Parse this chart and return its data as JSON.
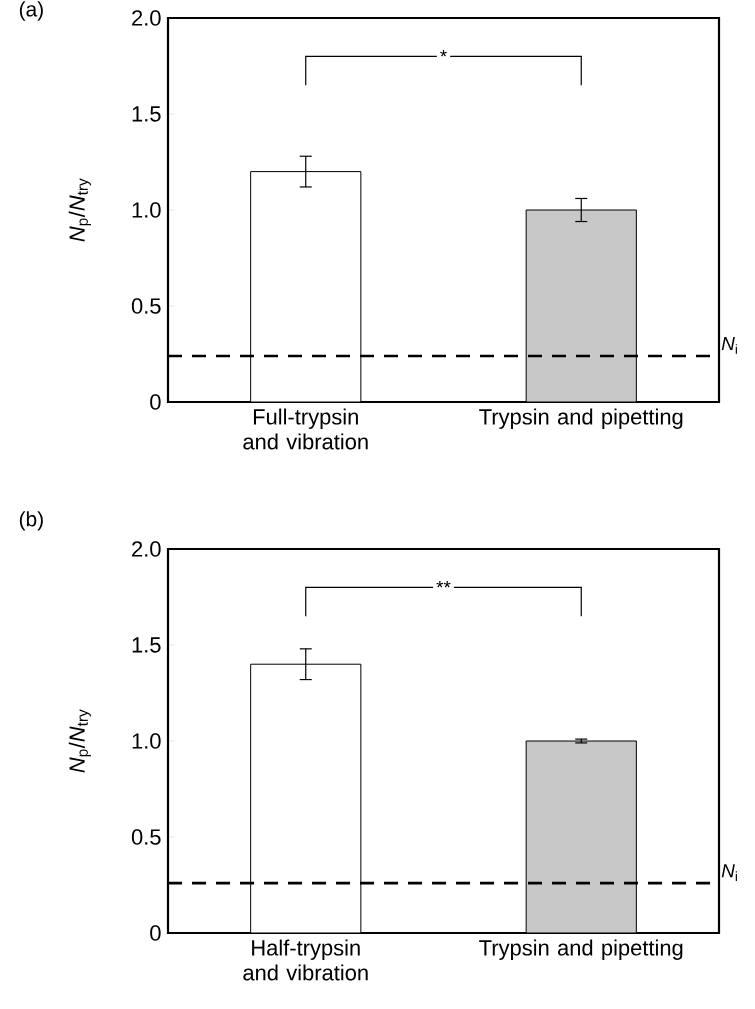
{
  "chart_data": [
    {
      "type": "bar",
      "title": "(a)",
      "ylabel": "*N*$_{p}$/*N*$_{try}$",
      "categories": [
        "Full-trypsin and vibration",
        "Trypsin and pipetting"
      ],
      "values": [
        1.2,
        1.0
      ],
      "errors": [
        0.08,
        0.06
      ],
      "colors": [
        "#ffffff",
        "#c8c8c8"
      ],
      "ylim": [
        0,
        2
      ],
      "yticks": [
        0,
        {
          "value": 0.5,
          "label": "0.5"
        },
        {
          "value": 1,
          "label": "1.0"
        },
        {
          "value": 1.5,
          "label": "1.5"
        },
        {
          "value": 2,
          "label": "2.0"
        }
      ],
      "ref_lines": [
        {
          "axis": "y",
          "value": 0.24,
          "label": "*N*$_{i}$",
          "color": "#000000",
          "line_style": "dashed"
        }
      ],
      "annotations": [
        "*"
      ],
      "grid": false
    },
    {
      "type": "bar",
      "title": "(b)",
      "ylabel": "*N*$_{p}$/*N*$_{try}$",
      "categories": [
        "Half-trypsin and vibration",
        "Trypsin and pipetting"
      ],
      "values": [
        1.4,
        1.0
      ],
      "errors": [
        0.08,
        0.01
      ],
      "colors": [
        "#ffffff",
        "#c8c8c8"
      ],
      "ylim": [
        0,
        2
      ],
      "yticks": [
        0,
        {
          "value": 0.5,
          "label": "0.5"
        },
        {
          "value": 1,
          "label": "1.0"
        },
        {
          "value": 1.5,
          "label": "1.5"
        },
        {
          "value": 2,
          "label": "2.0"
        }
      ],
      "ref_lines": [
        {
          "axis": "y",
          "value": 0.26,
          "label": "*N*$_{i}$",
          "color": "#000000",
          "line_style": "dashed"
        }
      ],
      "annotations": [
        "**"
      ],
      "grid": false
    }
  ]
}
